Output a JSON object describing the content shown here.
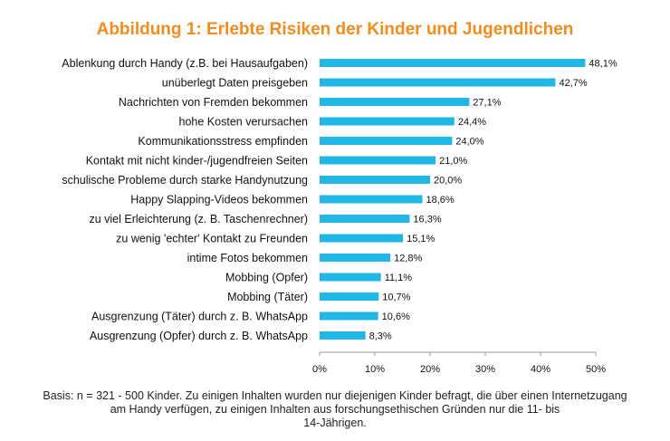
{
  "chart_data": {
    "type": "bar",
    "orientation": "horizontal",
    "title": "Abbildung 1: Erlebte Risiken der Kinder und Jugendlichen",
    "categories": [
      "Ablenkung durch Handy (z.B. bei Hausaufgaben)",
      "unüberlegt Daten preisgeben",
      "Nachrichten von Fremden bekommen",
      "hohe Kosten verursachen",
      "Kommunikationsstress empfinden",
      "Kontakt mit nicht kinder-/jugendfreien Seiten",
      "schulische Probleme durch starke Handynutzung",
      "Happy Slapping-Videos bekommen",
      "zu viel Erleichterung (z. B. Taschenrechner)",
      "zu wenig 'echter' Kontakt zu Freunden",
      "intime Fotos bekommen",
      "Mobbing (Opfer)",
      "Mobbing (Täter)",
      "Ausgrenzung (Täter) durch z. B. WhatsApp",
      "Ausgrenzung (Opfer) durch z. B. WhatsApp"
    ],
    "values": [
      48.1,
      42.7,
      27.1,
      24.4,
      24.0,
      21.0,
      20.0,
      18.6,
      16.3,
      15.1,
      12.8,
      11.1,
      10.7,
      10.6,
      8.3
    ],
    "value_labels": [
      "48,1%",
      "42,7%",
      "27,1%",
      "24,4%",
      "24,0%",
      "21,0%",
      "20,0%",
      "18,6%",
      "16,3%",
      "15,1%",
      "12,8%",
      "11,1%",
      "10,7%",
      "10,6%",
      "8,3%"
    ],
    "xlim": [
      0,
      50
    ],
    "x_ticks": [
      "0%",
      "10%",
      "20%",
      "30%",
      "40%",
      "50%"
    ],
    "grid": false,
    "bar_color": "#1fb8e6",
    "title_color": "#f28c1c"
  },
  "footnote": "Basis: n = 321 - 500 Kinder. Zu einigen Inhalten wurden nur diejenigen Kinder befragt, die über einen Internetzugang\nam Handy verfügen, zu einigen Inhalten aus forschungsethischen Gründen nur die 11- bis\n14-Jährigen."
}
